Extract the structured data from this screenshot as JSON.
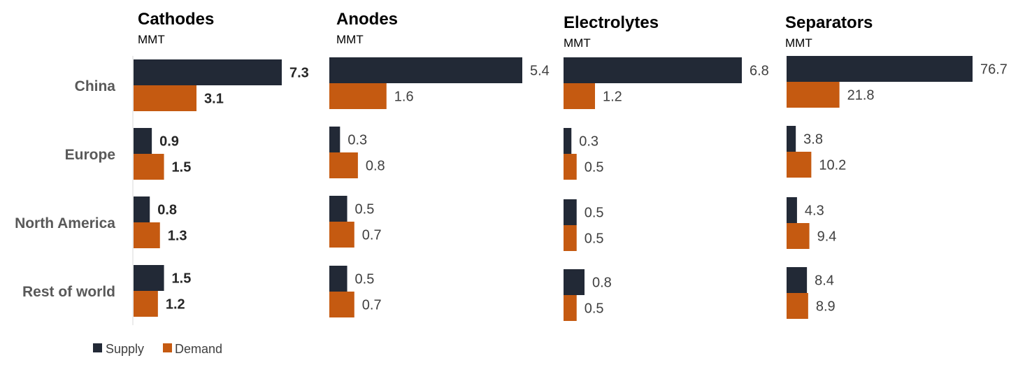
{
  "chart_data": {
    "type": "bar",
    "orientation": "horizontal",
    "categories": [
      "China",
      "Europe",
      "North America",
      "Rest of world"
    ],
    "legend": [
      {
        "name": "Supply",
        "color": "#222936"
      },
      {
        "name": "Demand",
        "color": "#C55A11"
      }
    ],
    "legend_position": "bottom-left",
    "panels": [
      {
        "title": "Cathodes",
        "unit": "MMT",
        "bold_labels": true,
        "series": [
          {
            "name": "Supply",
            "values": [
              7.3,
              0.9,
              0.8,
              1.5
            ],
            "labels": [
              "7.3",
              "0.9",
              "0.8",
              "1.5"
            ]
          },
          {
            "name": "Demand",
            "values": [
              3.1,
              1.5,
              1.3,
              1.2
            ],
            "labels": [
              "3.1",
              "1.5",
              "1.3",
              "1.2"
            ]
          }
        ]
      },
      {
        "title": "Anodes",
        "unit": "MMT",
        "bold_labels": false,
        "series": [
          {
            "name": "Supply",
            "values": [
              5.4,
              0.3,
              0.5,
              0.5
            ],
            "labels": [
              "5.4",
              "0.3",
              "0.5",
              "0.5"
            ]
          },
          {
            "name": "Demand",
            "values": [
              1.6,
              0.8,
              0.7,
              0.7
            ],
            "labels": [
              "1.6",
              "0.8",
              "0.7",
              "0.7"
            ]
          }
        ]
      },
      {
        "title": "Electrolytes",
        "unit": "MMT",
        "bold_labels": false,
        "series": [
          {
            "name": "Supply",
            "values": [
              6.8,
              0.3,
              0.5,
              0.8
            ],
            "labels": [
              "6.8",
              "0.3",
              "0.5",
              "0.8"
            ]
          },
          {
            "name": "Demand",
            "values": [
              1.2,
              0.5,
              0.5,
              0.5
            ],
            "labels": [
              "1.2",
              "0.5",
              "0.5",
              "0.5"
            ]
          }
        ]
      },
      {
        "title": "Separators",
        "unit": "MMT",
        "bold_labels": false,
        "series": [
          {
            "name": "Supply",
            "values": [
              76.7,
              3.8,
              4.3,
              8.4
            ],
            "labels": [
              "76.7",
              "3.8",
              "4.3",
              "8.4"
            ]
          },
          {
            "name": "Demand",
            "values": [
              21.8,
              10.2,
              9.4,
              8.9
            ],
            "labels": [
              "21.8",
              "10.2",
              "9.4",
              "8.9"
            ]
          }
        ]
      }
    ]
  }
}
